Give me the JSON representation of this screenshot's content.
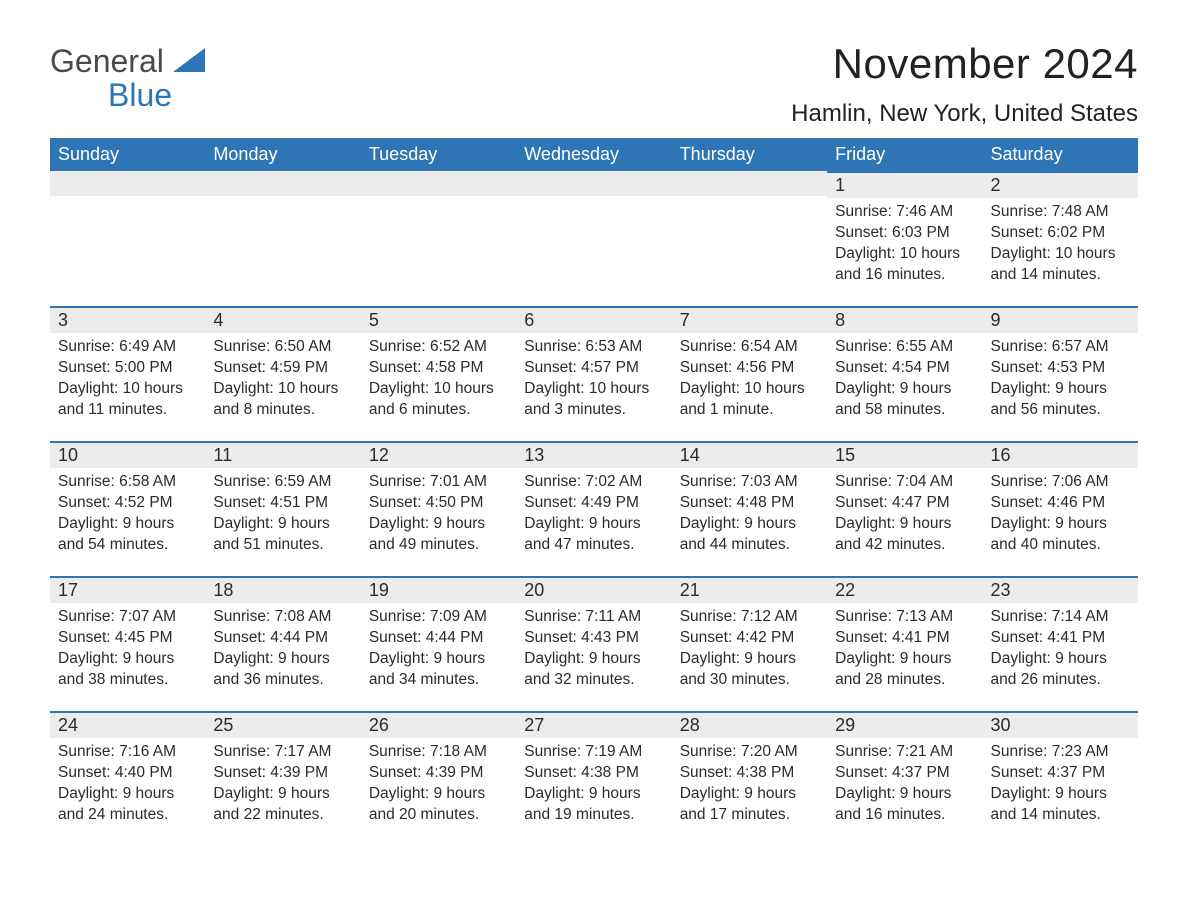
{
  "brand": {
    "word1": "General",
    "word2": "Blue",
    "accent_color": "#2E75B6"
  },
  "header": {
    "month_title": "November 2024",
    "location": "Hamlin, New York, United States"
  },
  "calendar": {
    "headers": [
      "Sunday",
      "Monday",
      "Tuesday",
      "Wednesday",
      "Thursday",
      "Friday",
      "Saturday"
    ],
    "header_bg": "#2E75B6",
    "header_fg": "#ffffff",
    "daynum_bg": "#ececec",
    "row_border_color": "#2E75B6",
    "text_color": "#2b2b2b",
    "weeks": [
      [
        null,
        null,
        null,
        null,
        null,
        {
          "n": "1",
          "sunrise": "7:46 AM",
          "sunset": "6:03 PM",
          "daylight": "10 hours and 16 minutes."
        },
        {
          "n": "2",
          "sunrise": "7:48 AM",
          "sunset": "6:02 PM",
          "daylight": "10 hours and 14 minutes."
        }
      ],
      [
        {
          "n": "3",
          "sunrise": "6:49 AM",
          "sunset": "5:00 PM",
          "daylight": "10 hours and 11 minutes."
        },
        {
          "n": "4",
          "sunrise": "6:50 AM",
          "sunset": "4:59 PM",
          "daylight": "10 hours and 8 minutes."
        },
        {
          "n": "5",
          "sunrise": "6:52 AM",
          "sunset": "4:58 PM",
          "daylight": "10 hours and 6 minutes."
        },
        {
          "n": "6",
          "sunrise": "6:53 AM",
          "sunset": "4:57 PM",
          "daylight": "10 hours and 3 minutes."
        },
        {
          "n": "7",
          "sunrise": "6:54 AM",
          "sunset": "4:56 PM",
          "daylight": "10 hours and 1 minute."
        },
        {
          "n": "8",
          "sunrise": "6:55 AM",
          "sunset": "4:54 PM",
          "daylight": "9 hours and 58 minutes."
        },
        {
          "n": "9",
          "sunrise": "6:57 AM",
          "sunset": "4:53 PM",
          "daylight": "9 hours and 56 minutes."
        }
      ],
      [
        {
          "n": "10",
          "sunrise": "6:58 AM",
          "sunset": "4:52 PM",
          "daylight": "9 hours and 54 minutes."
        },
        {
          "n": "11",
          "sunrise": "6:59 AM",
          "sunset": "4:51 PM",
          "daylight": "9 hours and 51 minutes."
        },
        {
          "n": "12",
          "sunrise": "7:01 AM",
          "sunset": "4:50 PM",
          "daylight": "9 hours and 49 minutes."
        },
        {
          "n": "13",
          "sunrise": "7:02 AM",
          "sunset": "4:49 PM",
          "daylight": "9 hours and 47 minutes."
        },
        {
          "n": "14",
          "sunrise": "7:03 AM",
          "sunset": "4:48 PM",
          "daylight": "9 hours and 44 minutes."
        },
        {
          "n": "15",
          "sunrise": "7:04 AM",
          "sunset": "4:47 PM",
          "daylight": "9 hours and 42 minutes."
        },
        {
          "n": "16",
          "sunrise": "7:06 AM",
          "sunset": "4:46 PM",
          "daylight": "9 hours and 40 minutes."
        }
      ],
      [
        {
          "n": "17",
          "sunrise": "7:07 AM",
          "sunset": "4:45 PM",
          "daylight": "9 hours and 38 minutes."
        },
        {
          "n": "18",
          "sunrise": "7:08 AM",
          "sunset": "4:44 PM",
          "daylight": "9 hours and 36 minutes."
        },
        {
          "n": "19",
          "sunrise": "7:09 AM",
          "sunset": "4:44 PM",
          "daylight": "9 hours and 34 minutes."
        },
        {
          "n": "20",
          "sunrise": "7:11 AM",
          "sunset": "4:43 PM",
          "daylight": "9 hours and 32 minutes."
        },
        {
          "n": "21",
          "sunrise": "7:12 AM",
          "sunset": "4:42 PM",
          "daylight": "9 hours and 30 minutes."
        },
        {
          "n": "22",
          "sunrise": "7:13 AM",
          "sunset": "4:41 PM",
          "daylight": "9 hours and 28 minutes."
        },
        {
          "n": "23",
          "sunrise": "7:14 AM",
          "sunset": "4:41 PM",
          "daylight": "9 hours and 26 minutes."
        }
      ],
      [
        {
          "n": "24",
          "sunrise": "7:16 AM",
          "sunset": "4:40 PM",
          "daylight": "9 hours and 24 minutes."
        },
        {
          "n": "25",
          "sunrise": "7:17 AM",
          "sunset": "4:39 PM",
          "daylight": "9 hours and 22 minutes."
        },
        {
          "n": "26",
          "sunrise": "7:18 AM",
          "sunset": "4:39 PM",
          "daylight": "9 hours and 20 minutes."
        },
        {
          "n": "27",
          "sunrise": "7:19 AM",
          "sunset": "4:38 PM",
          "daylight": "9 hours and 19 minutes."
        },
        {
          "n": "28",
          "sunrise": "7:20 AM",
          "sunset": "4:38 PM",
          "daylight": "9 hours and 17 minutes."
        },
        {
          "n": "29",
          "sunrise": "7:21 AM",
          "sunset": "4:37 PM",
          "daylight": "9 hours and 16 minutes."
        },
        {
          "n": "30",
          "sunrise": "7:23 AM",
          "sunset": "4:37 PM",
          "daylight": "9 hours and 14 minutes."
        }
      ]
    ],
    "labels": {
      "sunrise": "Sunrise:",
      "sunset": "Sunset:",
      "daylight": "Daylight:"
    }
  }
}
